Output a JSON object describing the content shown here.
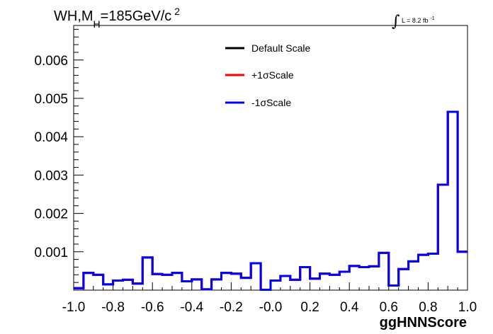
{
  "title": {
    "main": "WH,M",
    "subscript": "H",
    "rest": "=185GeV/c",
    "superscript": "2"
  },
  "lumi": {
    "symbol": "∫",
    "text": "L = 8.2 fb",
    "superscript": "-1"
  },
  "chart_data": {
    "type": "line",
    "style": "step-histogram",
    "xlabel": "ggHNNScore",
    "ylabel": "",
    "xlim": [
      -1.0,
      1.0
    ],
    "ylim": [
      0,
      0.0069
    ],
    "x_ticks": [
      "-1.0",
      "-0.8",
      "-0.6",
      "-0.4",
      "-0.2",
      "-0.0",
      "0.2",
      "0.4",
      "0.6",
      "0.8",
      "1.0"
    ],
    "y_ticks": [
      "0.001",
      "0.002",
      "0.003",
      "0.004",
      "0.005",
      "0.006"
    ],
    "bin_edges": [
      -1.0,
      -0.95,
      -0.9,
      -0.85,
      -0.8,
      -0.75,
      -0.7,
      -0.65,
      -0.6,
      -0.55,
      -0.5,
      -0.45,
      -0.4,
      -0.35,
      -0.3,
      -0.25,
      -0.2,
      -0.15,
      -0.1,
      -0.05,
      0.0,
      0.05,
      0.1,
      0.15,
      0.2,
      0.25,
      0.3,
      0.35,
      0.4,
      0.45,
      0.5,
      0.55,
      0.6,
      0.65,
      0.7,
      0.75,
      0.8,
      0.85,
      0.9,
      0.95,
      1.0
    ],
    "series": [
      {
        "name": "Default Scale",
        "color": "#000000",
        "values": [
          5e-05,
          0.00045,
          0.0004,
          0.00015,
          0.00025,
          0.00027,
          0.00017,
          0.00085,
          0.00042,
          0.0004,
          0.00045,
          0.00023,
          0.00028,
          2e-05,
          0.00028,
          0.00045,
          0.00043,
          0.00032,
          0.0007,
          1e-05,
          0.00025,
          0.00037,
          0.00027,
          0.0006,
          0.0003,
          0.00043,
          0.0004,
          0.00048,
          0.00063,
          0.0006,
          0.00062,
          0.00097,
          0.00012,
          0.00055,
          0.00075,
          0.00092,
          0.00095,
          0.00275,
          0.00465,
          0.001
        ]
      },
      {
        "name": "+1σScale",
        "color": "#ff0000",
        "values": [
          5e-05,
          0.00045,
          0.0004,
          0.00015,
          0.00025,
          0.00027,
          0.00017,
          0.00085,
          0.00042,
          0.0004,
          0.00045,
          0.00023,
          0.00028,
          2e-05,
          0.00028,
          0.00045,
          0.00043,
          0.00032,
          0.0007,
          1e-05,
          0.00025,
          0.00037,
          0.00027,
          0.0006,
          0.0003,
          0.00043,
          0.0004,
          0.00048,
          0.00063,
          0.0006,
          0.00062,
          0.00097,
          0.00012,
          0.00055,
          0.00075,
          0.00092,
          0.00095,
          0.00275,
          0.00465,
          0.001
        ]
      },
      {
        "name": "-1σScale",
        "color": "#0000ff",
        "values": [
          5e-05,
          0.00045,
          0.0004,
          0.00015,
          0.00025,
          0.00027,
          0.00017,
          0.00085,
          0.00042,
          0.0004,
          0.00045,
          0.00023,
          0.00028,
          2e-05,
          0.00028,
          0.00045,
          0.00043,
          0.00032,
          0.0007,
          1e-05,
          0.00025,
          0.00037,
          0.00027,
          0.0006,
          0.0003,
          0.00043,
          0.0004,
          0.00048,
          0.00063,
          0.0006,
          0.00062,
          0.00097,
          0.00012,
          0.00055,
          0.00075,
          0.00092,
          0.00095,
          0.00275,
          0.00465,
          0.001
        ]
      }
    ],
    "legend_position": "top-center",
    "grid": false
  }
}
